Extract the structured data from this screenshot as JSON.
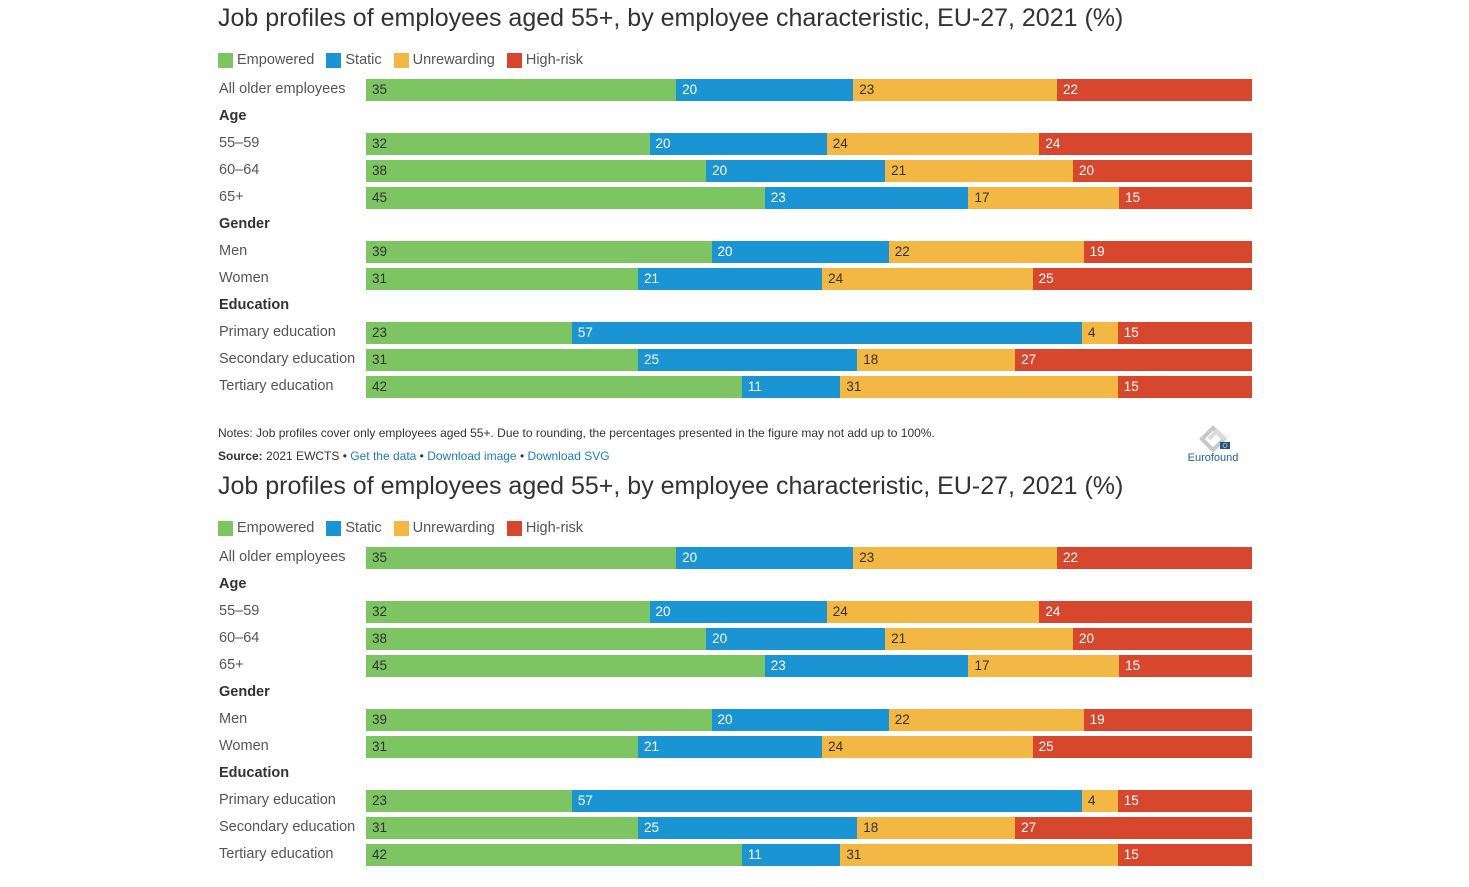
{
  "chart_data": [
    {
      "type": "bar",
      "orientation": "horizontal",
      "stacked": true,
      "title": "Job profiles of employees aged 55+, by employee characteristic, EU-27, 2021 (%)",
      "legend_position": "top-left",
      "series_names": [
        "Empowered",
        "Static",
        "Unrewarding",
        "High-risk"
      ],
      "colors": [
        "#7dc462",
        "#1a94d3",
        "#f2b843",
        "#d7472d"
      ],
      "label_colors": [
        "#333333",
        "#ffffff",
        "#333333",
        "#ffffff"
      ],
      "rows": [
        {
          "label": "All older employees",
          "values": [
            35,
            20,
            23,
            22
          ]
        },
        {
          "label": "Age",
          "group": true
        },
        {
          "label": "55–59",
          "values": [
            32,
            20,
            24,
            24
          ]
        },
        {
          "label": "60–64",
          "values": [
            38,
            20,
            21,
            20
          ]
        },
        {
          "label": "65+",
          "values": [
            45,
            23,
            17,
            15
          ]
        },
        {
          "label": "Gender",
          "group": true
        },
        {
          "label": "Men",
          "values": [
            39,
            20,
            22,
            19
          ]
        },
        {
          "label": "Women",
          "values": [
            31,
            21,
            24,
            25
          ]
        },
        {
          "label": "Education",
          "group": true
        },
        {
          "label": "Primary education",
          "values": [
            23,
            57,
            4,
            15
          ]
        },
        {
          "label": "Secondary education",
          "values": [
            31,
            25,
            18,
            27
          ]
        },
        {
          "label": "Tertiary education",
          "values": [
            42,
            11,
            31,
            15
          ]
        }
      ]
    },
    {
      "type": "bar",
      "orientation": "horizontal",
      "stacked": true,
      "title": "Job profiles of employees aged 55+, by employee characteristic, EU-27, 2021 (%)",
      "legend_position": "top-left",
      "series_names": [
        "Empowered",
        "Static",
        "Unrewarding",
        "High-risk"
      ],
      "colors": [
        "#7dc462",
        "#1a94d3",
        "#f2b843",
        "#d7472d"
      ],
      "label_colors": [
        "#333333",
        "#ffffff",
        "#333333",
        "#ffffff"
      ],
      "rows": [
        {
          "label": "All older employees",
          "values": [
            35,
            20,
            23,
            22
          ]
        },
        {
          "label": "Age",
          "group": true
        },
        {
          "label": "55–59",
          "values": [
            32,
            20,
            24,
            24
          ]
        },
        {
          "label": "60–64",
          "values": [
            38,
            20,
            21,
            20
          ]
        },
        {
          "label": "65+",
          "values": [
            45,
            23,
            17,
            15
          ]
        },
        {
          "label": "Gender",
          "group": true
        },
        {
          "label": "Men",
          "values": [
            39,
            20,
            22,
            19
          ]
        },
        {
          "label": "Women",
          "values": [
            31,
            21,
            24,
            25
          ]
        },
        {
          "label": "Education",
          "group": true
        },
        {
          "label": "Primary education",
          "values": [
            23,
            57,
            4,
            15
          ]
        },
        {
          "label": "Secondary education",
          "values": [
            31,
            25,
            18,
            27
          ]
        },
        {
          "label": "Tertiary education",
          "values": [
            42,
            11,
            31,
            15
          ]
        }
      ]
    }
  ],
  "footer": {
    "notes": "Notes: Job profiles cover only employees aged 55+. Due to rounding, the percentages presented in the figure may not add up to 100%.",
    "source_label": "Source:",
    "source_text": "2021 EWCTS",
    "separator": "•",
    "get_data": "Get the data",
    "download_image": "Download image",
    "download_svg": "Download SVG",
    "logo_text": "Eurofound",
    "link_color": "#1f7ac2"
  }
}
